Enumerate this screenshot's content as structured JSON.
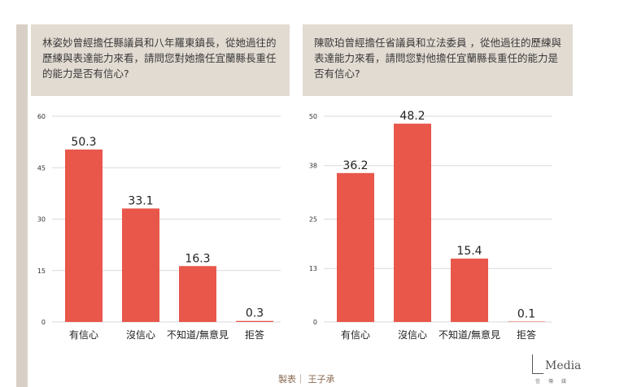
{
  "question1": "林姿妙曾經擔任縣議員和八年羅東鎮長，從她過往的歷練與表達能力來看，請問您對她擔任宜蘭縣長重任的能力是否有信心?",
  "question2": "陳歐珀曾經擔任省議員和立法委員 ，從他過往的歷練與表達能力來看，請問您對他擔任宜蘭縣長重任的能力是否有信心?",
  "credit": "製表｜ 王子承",
  "logo": {
    "word": "Media",
    "sub": "信傳媒"
  },
  "colors": {
    "bar": "#e8574a",
    "grid": "#d9d9d9",
    "panel": "#e2dbd2"
  },
  "chart_data": [
    {
      "type": "bar",
      "categories": [
        "有信心",
        "沒信心",
        "不知道/無意見",
        "拒答"
      ],
      "values": [
        50.3,
        33.1,
        16.3,
        0.3
      ],
      "ylim": [
        0,
        60
      ],
      "yticks": [
        0,
        15,
        30,
        45,
        60
      ],
      "grid": true
    },
    {
      "type": "bar",
      "categories": [
        "有信心",
        "沒信心",
        "不知道/無意見",
        "拒答"
      ],
      "values": [
        36.2,
        48.2,
        15.4,
        0.1
      ],
      "ylim": [
        0,
        50
      ],
      "yticks": [
        0,
        13,
        25,
        38,
        50
      ],
      "grid": true
    }
  ]
}
